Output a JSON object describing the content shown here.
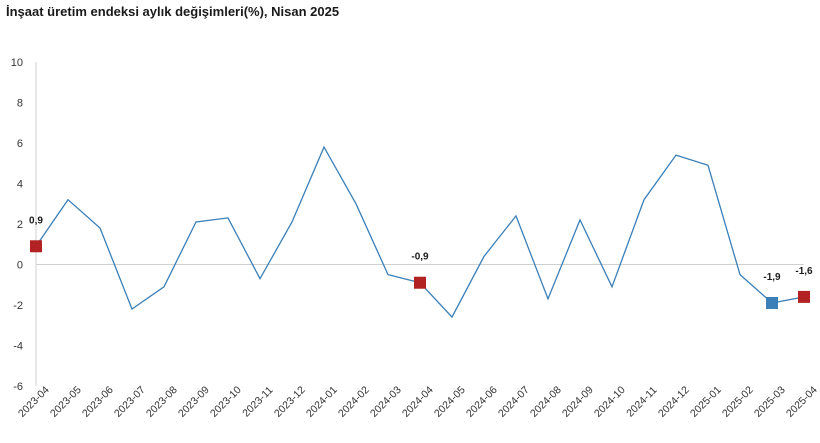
{
  "chart_data": {
    "type": "line",
    "title": "İnşaat üretim endeksi aylık değişimleri(%), Nisan 2025",
    "xlabel": "",
    "ylabel": "",
    "categories": [
      "2023-04",
      "2023-05",
      "2023-06",
      "2023-07",
      "2023-08",
      "2023-09",
      "2023-10",
      "2023-11",
      "2023-12",
      "2024-01",
      "2024-02",
      "2024-03",
      "2024-04",
      "2024-05",
      "2024-06",
      "2024-07",
      "2024-08",
      "2024-09",
      "2024-10",
      "2024-11",
      "2024-12",
      "2025-01",
      "2025-02",
      "2025-03",
      "2025-04"
    ],
    "series": [
      {
        "values": [
          0.9,
          3.2,
          1.8,
          -2.2,
          -1.1,
          2.1,
          2.3,
          -0.7,
          2.1,
          5.8,
          3.0,
          -0.5,
          -0.9,
          -2.6,
          0.4,
          2.4,
          -1.7,
          2.2,
          -1.1,
          3.2,
          5.4,
          4.9,
          -0.5,
          -1.9,
          -1.6
        ],
        "color": "#3a7fb8"
      }
    ],
    "ylim": [
      -6,
      10
    ],
    "yticks": [
      -6,
      -4,
      -2,
      0,
      2,
      4,
      6,
      8,
      10
    ],
    "grid": false,
    "highlighted_points": [
      {
        "category": "2023-04",
        "value": 0.9,
        "label": "0,9",
        "color": "#b22222"
      },
      {
        "category": "2024-04",
        "value": -0.9,
        "label": "-0,9",
        "color": "#b22222"
      },
      {
        "category": "2025-03",
        "value": -1.9,
        "label": "-1,9",
        "color": "#3a7fb8"
      },
      {
        "category": "2025-04",
        "value": -1.6,
        "label": "-1,6",
        "color": "#b22222"
      }
    ],
    "axis_color": "#d0d0d0"
  }
}
